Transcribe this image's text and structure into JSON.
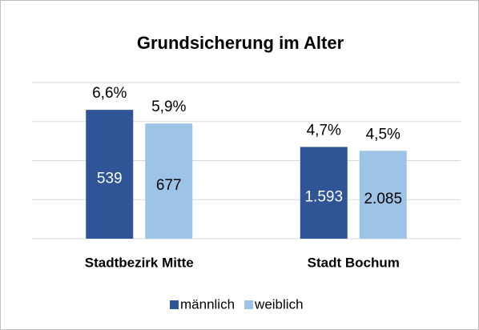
{
  "chart_data": {
    "type": "bar",
    "title": "Grundsicherung im Alter",
    "categories": [
      "Stadtbezirk Mitte",
      "Stadt Bochum"
    ],
    "series": [
      {
        "name": "männlich",
        "color": "#2f5597",
        "values": [
          6.6,
          4.7
        ],
        "value_labels": [
          "6,6%",
          "4,7%"
        ],
        "counts": [
          539,
          {
            "value": 1593,
            "label": "1.593"
          }
        ],
        "count_color": "#ffffff"
      },
      {
        "name": "weiblich",
        "color": "#9dc3e6",
        "values": [
          5.9,
          4.5
        ],
        "value_labels": [
          "5,9%",
          "4,5%"
        ],
        "counts": [
          677,
          {
            "value": 2085,
            "label": "2.085"
          }
        ],
        "count_color": "#000000"
      }
    ],
    "ylim": [
      0,
      8
    ],
    "yticks": [
      0,
      2,
      4,
      6,
      8
    ],
    "grid": true,
    "legend": "bottom"
  }
}
